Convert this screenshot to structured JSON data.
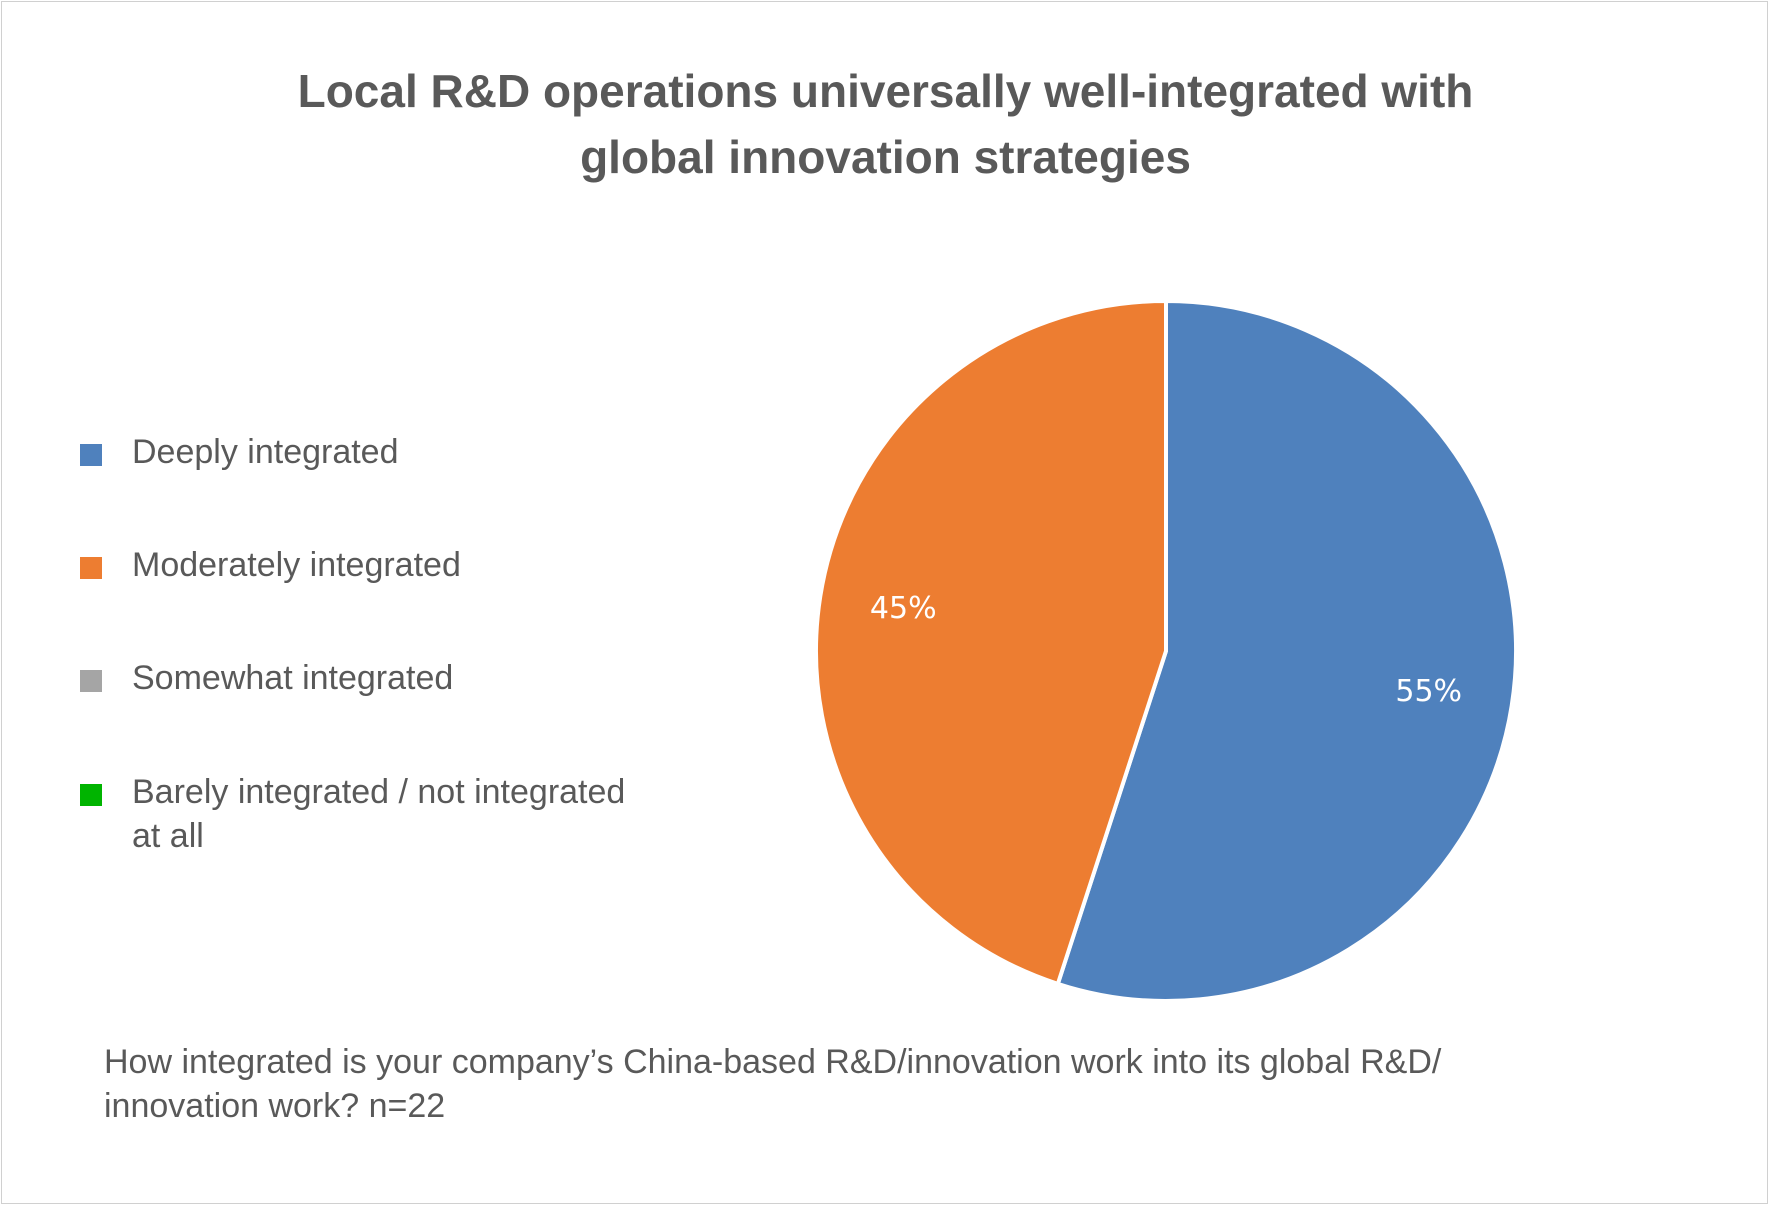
{
  "chart_data": {
    "type": "pie",
    "title_lines": [
      "Local R&D operations universally well-integrated with",
      "global innovation strategies"
    ],
    "slices": [
      {
        "name": "Deeply integrated",
        "value": 55,
        "label": "55%",
        "color": "#4F81BD"
      },
      {
        "name": "Moderately integrated",
        "value": 45,
        "label": "45%",
        "color": "#ED7D31"
      },
      {
        "name": "Somewhat integrated",
        "value": 0,
        "label": "",
        "color": "#A5A5A5"
      },
      {
        "name": "Barely integrated / not integrated at all",
        "value": 0,
        "label": "",
        "color": "#00B400"
      }
    ],
    "legend_placement": "left",
    "label_color": "#ffffff"
  },
  "legend": {
    "items": [
      {
        "lines": [
          "Deeply integrated"
        ],
        "color": "#4F81BD"
      },
      {
        "lines": [
          "Moderately integrated"
        ],
        "color": "#ED7D31"
      },
      {
        "lines": [
          "Somewhat integrated"
        ],
        "color": "#A5A5A5"
      },
      {
        "lines": [
          "Barely integrated / not integrated",
          "at all"
        ],
        "color": "#00B400"
      }
    ]
  },
  "footnote": {
    "lines": [
      "How integrated is your company’s China-based R&D/innovation work into its global R&D/",
      "innovation work? n=22"
    ]
  }
}
